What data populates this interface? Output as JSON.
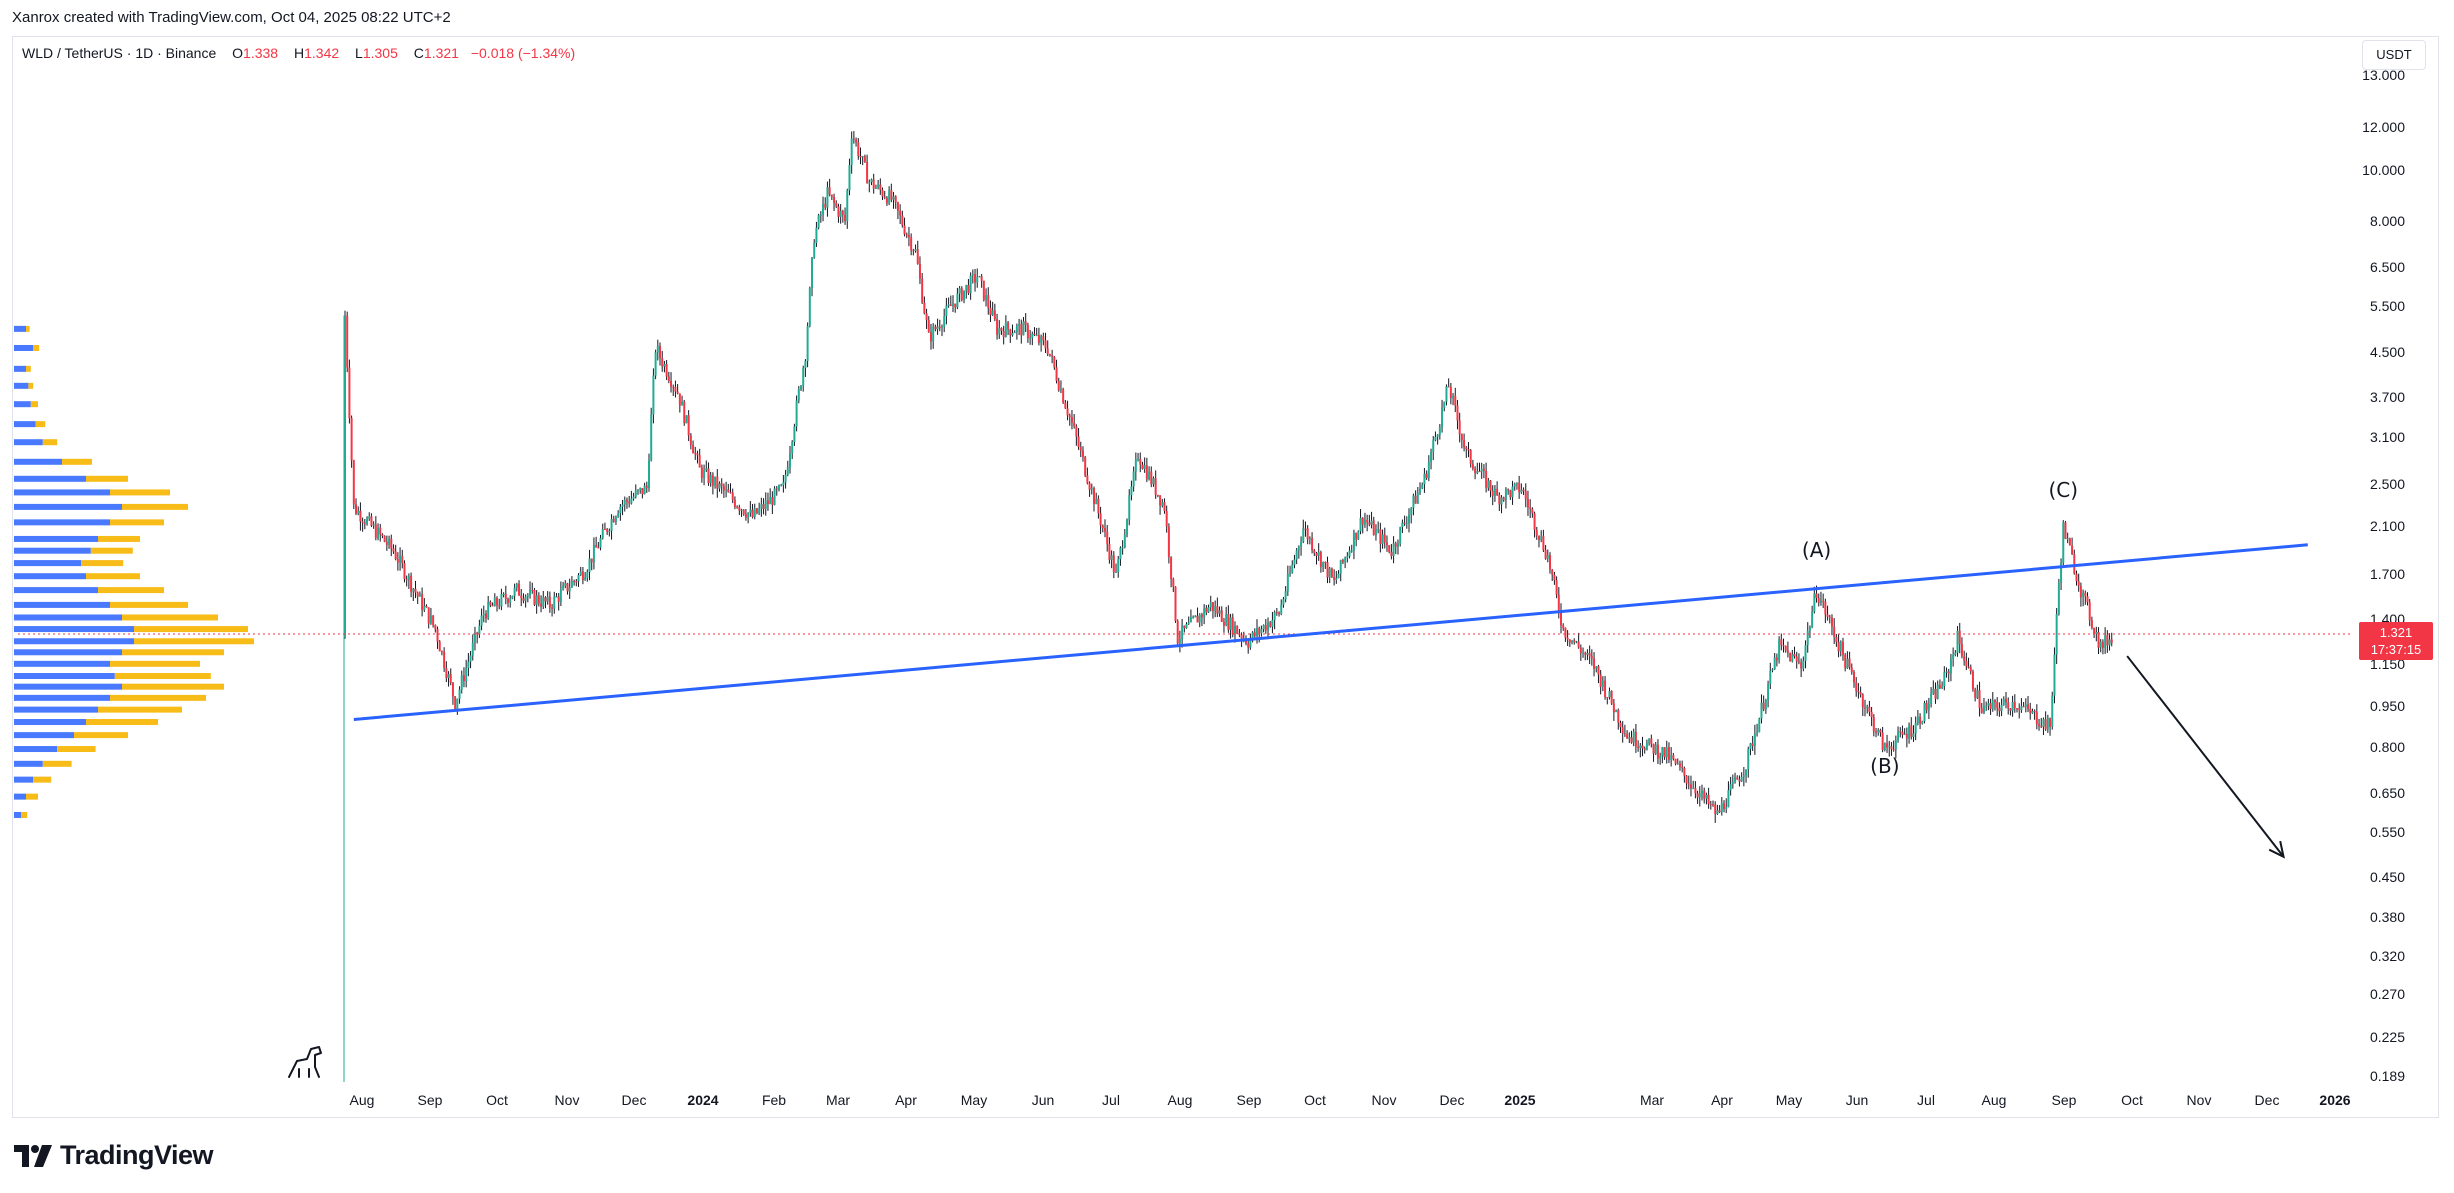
{
  "caption": "Xanrox created with TradingView.com, Oct 04, 2025 08:22 UTC+2",
  "legend": {
    "symbol": "WLD / TetherUS · 1D · Binance",
    "open_label": "O",
    "open": "1.338",
    "high_label": "H",
    "high": "1.342",
    "low_label": "L",
    "low": "1.305",
    "close_label": "C",
    "close": "1.321",
    "change": "−0.018 (−1.34%)"
  },
  "currency_button": "USDT",
  "price_tag": {
    "price": "1.321",
    "countdown": "17:37:15"
  },
  "brand": "TradingView",
  "colors": {
    "up": "#22ab94",
    "down": "#f23645",
    "candle_wick": "#131722",
    "trendline": "#2962ff",
    "volume_profile_up": "#2962ff",
    "volume_profile_down": "#f7b500",
    "price_line": "#f23645",
    "accent": "#f23645"
  },
  "chart_data": {
    "type": "candlestick",
    "scale": "log",
    "y_ticks": [
      "13.000",
      "12.000",
      "10.000",
      "8.000",
      "6.500",
      "5.500",
      "4.500",
      "3.700",
      "3.100",
      "2.500",
      "2.100",
      "1.700",
      "1.400",
      "1.150",
      "0.950",
      "0.800",
      "0.650",
      "0.550",
      "0.450",
      "0.380",
      "0.320",
      "0.270",
      "0.225",
      "0.189"
    ],
    "x_ticks": [
      "Aug",
      "Sep",
      "Oct",
      "Nov",
      "Dec",
      "2024",
      "Feb",
      "Mar",
      "Apr",
      "May",
      "Jun",
      "Jul",
      "Aug",
      "Sep",
      "Oct",
      "Nov",
      "Dec",
      "2025",
      "Mar",
      "Apr",
      "May",
      "Jun",
      "Jul",
      "Aug",
      "Sep",
      "Oct",
      "Nov",
      "Dec",
      "2026"
    ],
    "x_start": "2023-07-24",
    "x_end": "2026-01-01",
    "price_path": [
      [
        "2023-07-24",
        5.3,
        1.3
      ],
      [
        "2023-07-28",
        2.3
      ],
      [
        "2023-08-15",
        1.9
      ],
      [
        "2023-09-03",
        1.35
      ],
      [
        "2023-09-12",
        0.98
      ],
      [
        "2023-09-25",
        1.45
      ],
      [
        "2023-10-10",
        1.6
      ],
      [
        "2023-10-25",
        1.5
      ],
      [
        "2023-11-10",
        1.75
      ],
      [
        "2023-11-25",
        2.3
      ],
      [
        "2023-12-08",
        2.5
      ],
      [
        "2023-12-12",
        4.6
      ],
      [
        "2023-12-22",
        3.8
      ],
      [
        "2024-01-01",
        2.7
      ],
      [
        "2024-01-15",
        2.4
      ],
      [
        "2024-01-25",
        2.2
      ],
      [
        "2024-02-08",
        2.5
      ],
      [
        "2024-02-18",
        4.5
      ],
      [
        "2024-02-22",
        7.5
      ],
      [
        "2024-02-28",
        9.0
      ],
      [
        "2024-03-07",
        8.0
      ],
      [
        "2024-03-10",
        11.8
      ],
      [
        "2024-03-18",
        9.5
      ],
      [
        "2024-03-28",
        8.8
      ],
      [
        "2024-04-08",
        7.0
      ],
      [
        "2024-04-14",
        4.8
      ],
      [
        "2024-04-25",
        5.6
      ],
      [
        "2024-05-06",
        6.3
      ],
      [
        "2024-05-15",
        5.0
      ],
      [
        "2024-05-27",
        5.0
      ],
      [
        "2024-06-07",
        4.6
      ],
      [
        "2024-06-18",
        3.3
      ],
      [
        "2024-07-02",
        2.1
      ],
      [
        "2024-07-08",
        1.7
      ],
      [
        "2024-07-18",
        2.9
      ],
      [
        "2024-07-30",
        2.3
      ],
      [
        "2024-08-05",
        1.3
      ],
      [
        "2024-08-20",
        1.5
      ],
      [
        "2024-09-06",
        1.28
      ],
      [
        "2024-09-20",
        1.45
      ],
      [
        "2024-10-01",
        2.1
      ],
      [
        "2024-10-15",
        1.65
      ],
      [
        "2024-10-28",
        2.2
      ],
      [
        "2024-11-10",
        1.9
      ],
      [
        "2024-11-25",
        2.6
      ],
      [
        "2024-12-06",
        3.9
      ],
      [
        "2024-12-14",
        2.9
      ],
      [
        "2024-12-28",
        2.4
      ],
      [
        "2025-01-08",
        2.5
      ],
      [
        "2025-01-20",
        1.85
      ],
      [
        "2025-01-27",
        1.35
      ],
      [
        "2025-02-10",
        1.15
      ],
      [
        "2025-02-25",
        0.85
      ],
      [
        "2025-03-15",
        0.78
      ],
      [
        "2025-04-07",
        0.6
      ],
      [
        "2025-04-20",
        0.75
      ],
      [
        "2025-05-05",
        1.25
      ],
      [
        "2025-05-15",
        1.15
      ],
      [
        "2025-05-22",
        1.6
      ],
      [
        "2025-06-05",
        1.15
      ],
      [
        "2025-06-22",
        0.8
      ],
      [
        "2025-07-05",
        0.88
      ],
      [
        "2025-07-20",
        1.1
      ],
      [
        "2025-07-25",
        1.3
      ],
      [
        "2025-08-05",
        0.95
      ],
      [
        "2025-08-20",
        0.98
      ],
      [
        "2025-09-05",
        0.88
      ],
      [
        "2025-09-09",
        1.65
      ],
      [
        "2025-09-11",
        2.1
      ],
      [
        "2025-09-20",
        1.55
      ],
      [
        "2025-09-28",
        1.25
      ],
      [
        "2025-10-04",
        1.321
      ]
    ],
    "trendline": {
      "from": [
        "2023-07-28",
        0.91
      ],
      "to": [
        "2025-12-31",
        1.95
      ]
    },
    "projection_arrow": {
      "from": [
        "2025-10-10",
        1.2
      ],
      "to": [
        "2025-12-20",
        0.5
      ]
    },
    "current_price": 1.321,
    "wave_labels": [
      {
        "text": "(A)",
        "date": "2025-05-22",
        "price": 1.85
      },
      {
        "text": "(B)",
        "date": "2025-06-22",
        "price": 0.72
      },
      {
        "text": "(C)",
        "date": "2025-09-11",
        "price": 2.4
      }
    ],
    "volume_profile": [
      [
        5.0,
        0.05,
        0.03
      ],
      [
        4.6,
        0.08,
        0.05
      ],
      [
        4.2,
        0.05,
        0.04
      ],
      [
        3.9,
        0.06,
        0.04
      ],
      [
        3.6,
        0.07,
        0.06
      ],
      [
        3.3,
        0.09,
        0.08
      ],
      [
        3.05,
        0.12,
        0.12
      ],
      [
        2.8,
        0.2,
        0.25
      ],
      [
        2.6,
        0.3,
        0.35
      ],
      [
        2.45,
        0.4,
        0.5
      ],
      [
        2.3,
        0.45,
        0.55
      ],
      [
        2.15,
        0.4,
        0.45
      ],
      [
        2.0,
        0.35,
        0.35
      ],
      [
        1.9,
        0.32,
        0.35
      ],
      [
        1.8,
        0.28,
        0.35
      ],
      [
        1.7,
        0.3,
        0.45
      ],
      [
        1.6,
        0.35,
        0.55
      ],
      [
        1.5,
        0.4,
        0.65
      ],
      [
        1.42,
        0.45,
        0.8
      ],
      [
        1.35,
        0.5,
        0.95
      ],
      [
        1.28,
        0.5,
        1.0
      ],
      [
        1.22,
        0.45,
        0.85
      ],
      [
        1.16,
        0.4,
        0.75
      ],
      [
        1.1,
        0.42,
        0.8
      ],
      [
        1.05,
        0.45,
        0.85
      ],
      [
        1.0,
        0.4,
        0.8
      ],
      [
        0.95,
        0.35,
        0.7
      ],
      [
        0.9,
        0.3,
        0.6
      ],
      [
        0.85,
        0.25,
        0.45
      ],
      [
        0.8,
        0.18,
        0.32
      ],
      [
        0.75,
        0.12,
        0.24
      ],
      [
        0.7,
        0.08,
        0.15
      ],
      [
        0.65,
        0.05,
        0.1
      ],
      [
        0.6,
        0.03,
        0.05
      ]
    ]
  }
}
